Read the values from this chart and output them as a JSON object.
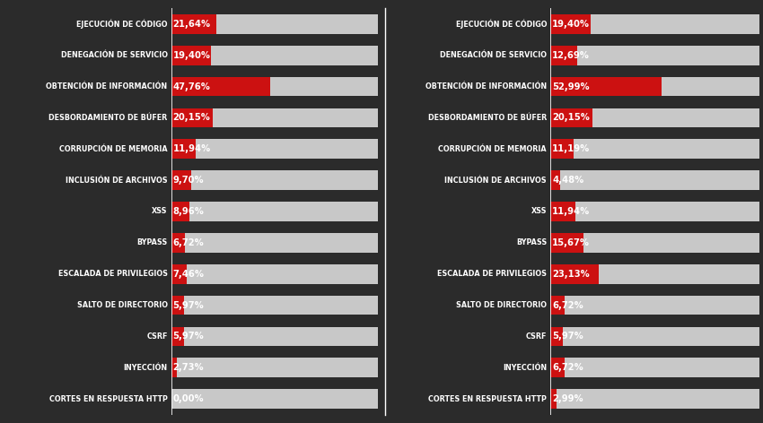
{
  "categories": [
    "EJECUCIÓN DE CÓDIGO",
    "DENEGACIÓN DE SERVICIO",
    "OBTENCIÓN DE INFORMACIÓN",
    "DESBORDAMIENTO DE BÚFER",
    "CORRUPCIÓN DE MEMORIA",
    "INCLUSIÓN DE ARCHIVOS",
    "XSS",
    "BYPASS",
    "ESCALADA DE PRIVILEGIOS",
    "SALTO DE DIRECTORIO",
    "CSRF",
    "INYECCIÓN",
    "CORTES EN RESPUESTA HTTP"
  ],
  "left_values": [
    21.64,
    19.4,
    47.76,
    20.15,
    11.94,
    9.7,
    8.96,
    6.72,
    7.46,
    5.97,
    5.97,
    2.73,
    0.0
  ],
  "right_values": [
    19.4,
    12.69,
    52.99,
    20.15,
    11.19,
    4.48,
    11.94,
    15.67,
    23.13,
    6.72,
    5.97,
    6.72,
    2.99
  ],
  "left_labels": [
    "21,64%",
    "19,40%",
    "47,76%",
    "20,15%",
    "11,94%",
    "9,70%",
    "8,96%",
    "6,72%",
    "7,46%",
    "5,97%",
    "5,97%",
    "2,73%",
    "0,00%"
  ],
  "right_labels": [
    "19,40%",
    "12,69%",
    "52,99%",
    "20,15%",
    "11,19%",
    "4,48%",
    "11,94%",
    "15,67%",
    "23,13%",
    "6,72%",
    "5,97%",
    "6,72%",
    "2,99%"
  ],
  "bar_max": 100,
  "bar_color_red": "#cc1111",
  "bar_color_gray": "#c8c8c8",
  "bg_color": "#2b2b2b",
  "text_color": "#ffffff",
  "label_color_white": "#ffffff",
  "bar_height": 0.62,
  "fontsize_cat": 5.8,
  "fontsize_pct": 7.2,
  "divider_color": "#ffffff"
}
